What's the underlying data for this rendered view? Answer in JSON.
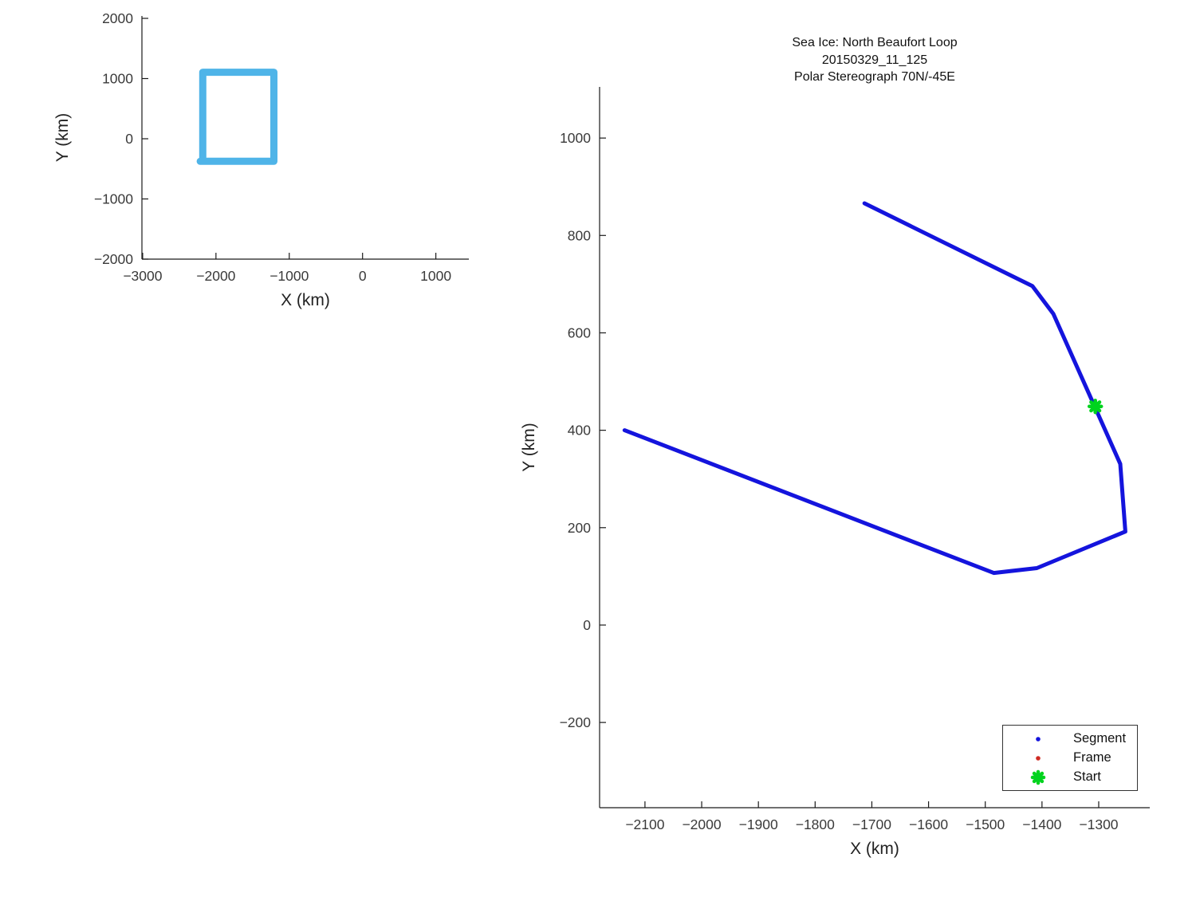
{
  "legend": {
    "location": "lower-right",
    "items": [
      {
        "label": "Segment",
        "marker": "dot",
        "color": "#1414dd"
      },
      {
        "label": "Frame",
        "marker": "dot",
        "color": "#cf2b24"
      },
      {
        "label": "Start",
        "marker": "asterisk",
        "color": "#00d31e"
      }
    ]
  },
  "chart_data": [
    {
      "name": "overview-inset",
      "type": "line",
      "xlabel": "X (km)",
      "ylabel": "Y (km)",
      "xlim": [
        -3010,
        1450
      ],
      "ylim": [
        -2000,
        2040
      ],
      "xticks": [
        -3000,
        -2000,
        -1000,
        0,
        1000
      ],
      "yticks": [
        -2000,
        -1000,
        0,
        1000,
        2000
      ],
      "grid": false,
      "series": [
        {
          "name": "view-extent-box",
          "color": "#4fb4e8",
          "line_width": 9,
          "points": [
            [
              -2180,
              -310
            ],
            [
              -2180,
              1105
            ],
            [
              -1210,
              1105
            ],
            [
              -1210,
              -375
            ],
            [
              -2215,
              -375
            ]
          ]
        }
      ]
    },
    {
      "name": "trajectory-main",
      "type": "line",
      "title_lines": [
        "Sea Ice: North Beaufort Loop",
        "20150329_11_125",
        "Polar Stereograph 70N/-45E"
      ],
      "xlabel": "X (km)",
      "ylabel": "Y (km)",
      "xlim": [
        -2180,
        -1210
      ],
      "ylim": [
        -375,
        1105
      ],
      "xticks": [
        -2100,
        -2000,
        -1900,
        -1800,
        -1700,
        -1600,
        -1500,
        -1400,
        -1300
      ],
      "yticks": [
        -200,
        0,
        200,
        400,
        600,
        800,
        1000
      ],
      "grid": false,
      "series": [
        {
          "name": "segment-track",
          "legend": "Segment",
          "color": "#1414dd",
          "line_width": 5,
          "points": [
            [
              -1713,
              866
            ],
            [
              -1417,
              696
            ],
            [
              -1380,
              639
            ],
            [
              -1262,
              331
            ],
            [
              -1253,
              192
            ],
            [
              -1409,
              117
            ],
            [
              -1485,
              107
            ],
            [
              -2136,
              400
            ]
          ]
        }
      ],
      "markers": [
        {
          "name": "start",
          "legend": "Start",
          "shape": "asterisk",
          "color": "#00d31e",
          "x": -1306,
          "y": 449,
          "size": 15
        }
      ]
    }
  ]
}
